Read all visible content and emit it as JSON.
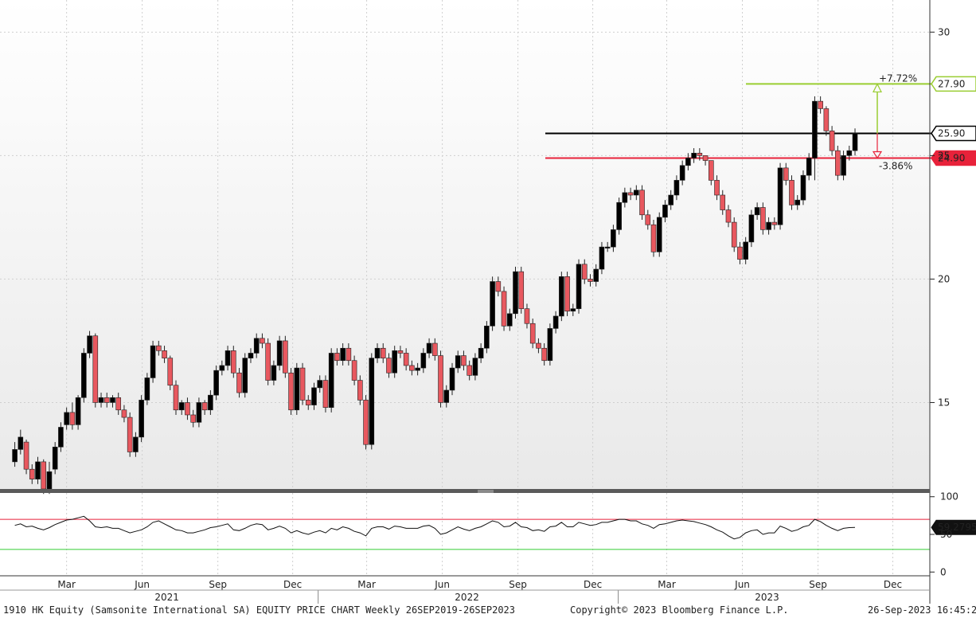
{
  "chart_data": {
    "type": "candlestick",
    "security": "1910 HK Equity",
    "ylim": [
      11.5,
      31.3
    ],
    "y_ticks": [
      15,
      20,
      25,
      30
    ],
    "x_month_labels": [
      {
        "label": "Mar",
        "date": "2021-03-01"
      },
      {
        "label": "Jun",
        "date": "2021-06-01"
      },
      {
        "label": "Sep",
        "date": "2021-09-01"
      },
      {
        "label": "Dec",
        "date": "2021-12-01"
      },
      {
        "label": "Mar",
        "date": "2022-03-01"
      },
      {
        "label": "Jun",
        "date": "2022-06-01"
      },
      {
        "label": "Sep",
        "date": "2022-09-01"
      },
      {
        "label": "Dec",
        "date": "2022-12-01"
      },
      {
        "label": "Mar",
        "date": "2023-03-01"
      },
      {
        "label": "Jun",
        "date": "2023-06-01"
      },
      {
        "label": "Sep",
        "date": "2023-09-01"
      },
      {
        "label": "Dec",
        "date": "2023-12-01"
      }
    ],
    "x_year_labels": [
      {
        "label": "2021",
        "date": "2021-07-01"
      },
      {
        "label": "2022",
        "date": "2022-07-01"
      },
      {
        "label": "2023",
        "date": "2023-07-01"
      }
    ],
    "year_dividers": [
      "2022-01-01",
      "2023-01-01"
    ],
    "candles_start_date": "2020-12-28",
    "weekly_close": [
      13.1,
      13.6,
      12.3,
      11.9,
      12.6,
      11.5,
      12.2,
      13.2,
      14.0,
      14.6,
      14.1,
      15.2,
      17.0,
      17.7,
      15.0,
      15.2,
      15.0,
      15.2,
      14.7,
      14.4,
      13.0,
      13.6,
      15.1,
      16.0,
      17.3,
      17.1,
      16.8,
      15.7,
      14.7,
      15.0,
      14.5,
      14.2,
      15.0,
      14.7,
      15.3,
      16.3,
      16.5,
      17.1,
      16.2,
      15.4,
      16.8,
      17.0,
      17.6,
      17.4,
      15.9,
      16.5,
      17.5,
      16.2,
      14.7,
      16.4,
      15.1,
      14.9,
      15.6,
      15.9,
      14.8,
      17.0,
      16.7,
      17.2,
      16.7,
      15.9,
      15.1,
      13.3,
      16.8,
      17.2,
      16.8,
      16.2,
      17.1,
      17.0,
      16.5,
      16.3,
      16.4,
      17.0,
      17.4,
      16.9,
      15.0,
      15.5,
      16.4,
      16.9,
      16.5,
      16.1,
      16.8,
      17.2,
      18.1,
      19.9,
      19.5,
      18.1,
      18.6,
      20.3,
      18.8,
      18.2,
      17.4,
      17.2,
      16.7,
      18.0,
      18.5,
      20.1,
      18.7,
      18.8,
      20.6,
      20.0,
      19.9,
      20.4,
      21.3,
      21.3,
      22.0,
      23.1,
      23.5,
      23.4,
      23.6,
      22.6,
      22.2,
      21.1,
      22.5,
      23.0,
      23.4,
      24.0,
      24.6,
      24.9,
      25.1,
      25.0,
      24.8,
      24.0,
      23.4,
      22.8,
      22.3,
      21.3,
      20.8,
      21.5,
      22.6,
      22.9,
      22.0,
      22.3,
      22.2,
      24.5,
      24.0,
      23.0,
      23.2,
      24.2,
      24.9,
      27.2,
      26.9,
      26.0,
      25.2,
      24.2,
      25.0,
      25.2,
      25.9
    ],
    "weekly_open": [
      12.6,
      13.1,
      13.4,
      12.3,
      11.9,
      12.6,
      11.5,
      12.3,
      13.2,
      14.1,
      14.6,
      14.1,
      15.2,
      17.0,
      17.7,
      15.0,
      15.2,
      15.0,
      15.2,
      14.7,
      14.4,
      13.0,
      13.6,
      15.1,
      16.0,
      17.3,
      17.1,
      16.8,
      15.7,
      14.7,
      15.0,
      14.5,
      14.2,
      15.0,
      14.7,
      15.3,
      16.3,
      16.5,
      17.1,
      16.2,
      15.4,
      16.8,
      17.0,
      17.6,
      17.4,
      15.9,
      16.5,
      17.5,
      16.2,
      14.7,
      16.4,
      15.1,
      14.9,
      15.6,
      15.9,
      14.8,
      17.0,
      16.7,
      17.2,
      16.7,
      15.9,
      15.1,
      13.3,
      16.8,
      17.2,
      16.8,
      16.2,
      17.1,
      17.0,
      16.5,
      16.3,
      16.4,
      17.0,
      17.4,
      16.9,
      15.0,
      15.5,
      16.4,
      16.9,
      16.5,
      16.1,
      16.8,
      17.2,
      18.1,
      19.9,
      19.5,
      18.1,
      18.6,
      20.3,
      18.8,
      18.2,
      17.4,
      17.2,
      16.7,
      18.0,
      18.5,
      20.1,
      18.7,
      18.8,
      20.6,
      20.0,
      19.9,
      20.4,
      21.3,
      21.3,
      22.0,
      23.1,
      23.5,
      23.4,
      23.6,
      22.6,
      22.2,
      21.1,
      22.5,
      23.0,
      23.4,
      24.0,
      24.6,
      24.9,
      25.1,
      25.0,
      24.8,
      24.0,
      23.4,
      22.8,
      22.3,
      21.3,
      20.8,
      21.5,
      22.6,
      22.9,
      22.0,
      22.3,
      22.2,
      24.5,
      24.0,
      23.0,
      23.2,
      24.2,
      24.9,
      27.2,
      26.9,
      26.0,
      25.2,
      24.2,
      25.0,
      25.2
    ],
    "weekly_high": [
      13.4,
      13.9,
      13.5,
      12.5,
      12.8,
      12.7,
      12.6,
      13.4,
      14.2,
      14.8,
      15.0,
      15.3,
      17.2,
      17.9,
      17.8,
      15.4,
      15.4,
      15.3,
      15.4,
      14.9,
      14.6,
      13.8,
      15.3,
      16.2,
      17.5,
      17.5,
      17.3,
      16.9,
      15.9,
      15.1,
      15.2,
      14.7,
      15.2,
      15.1,
      15.5,
      16.5,
      16.7,
      17.3,
      17.3,
      16.4,
      17.0,
      17.2,
      17.8,
      17.8,
      17.6,
      16.7,
      17.7,
      17.7,
      16.4,
      16.6,
      16.6,
      15.3,
      15.8,
      16.1,
      16.1,
      17.2,
      17.2,
      17.4,
      17.4,
      16.9,
      16.1,
      15.3,
      17.0,
      17.4,
      17.4,
      17.0,
      17.3,
      17.3,
      17.2,
      16.7,
      16.6,
      17.2,
      17.6,
      17.6,
      17.1,
      15.7,
      16.6,
      17.1,
      17.1,
      16.7,
      17.0,
      17.4,
      18.3,
      20.1,
      20.1,
      19.7,
      18.8,
      20.5,
      20.5,
      19.0,
      18.4,
      17.6,
      17.4,
      18.2,
      18.7,
      20.3,
      20.3,
      19.0,
      20.8,
      20.8,
      20.2,
      20.6,
      21.5,
      21.5,
      22.2,
      23.3,
      23.7,
      23.7,
      23.8,
      23.8,
      22.8,
      22.4,
      22.7,
      23.2,
      23.6,
      24.2,
      24.8,
      25.1,
      25.3,
      25.3,
      25.0,
      24.8,
      24.2,
      23.6,
      23.0,
      22.5,
      21.5,
      21.7,
      22.8,
      23.1,
      23.1,
      22.5,
      22.5,
      24.7,
      24.7,
      24.2,
      23.4,
      24.4,
      25.1,
      27.4,
      27.4,
      27.0,
      26.2,
      25.4,
      25.2,
      25.4,
      26.1
    ],
    "weekly_low": [
      12.4,
      12.9,
      12.1,
      11.7,
      11.7,
      11.3,
      11.3,
      12.1,
      13.0,
      13.9,
      13.9,
      13.9,
      15.0,
      16.8,
      14.8,
      14.8,
      14.8,
      14.8,
      14.5,
      14.2,
      12.8,
      12.8,
      13.4,
      14.9,
      15.8,
      16.9,
      16.6,
      15.5,
      14.5,
      14.5,
      14.3,
      14.0,
      14.0,
      14.5,
      14.5,
      15.1,
      16.1,
      16.3,
      16.0,
      15.2,
      15.2,
      16.6,
      16.8,
      17.2,
      15.7,
      15.7,
      16.3,
      16.0,
      14.5,
      14.5,
      14.9,
      14.7,
      14.7,
      15.4,
      14.6,
      14.6,
      16.5,
      16.5,
      16.5,
      15.7,
      14.9,
      13.1,
      13.1,
      16.6,
      16.6,
      16.0,
      16.0,
      16.8,
      16.3,
      16.1,
      16.1,
      16.2,
      16.8,
      16.7,
      14.8,
      14.8,
      15.3,
      16.2,
      16.3,
      15.9,
      15.9,
      16.6,
      17.0,
      17.9,
      19.3,
      17.9,
      17.9,
      18.4,
      18.6,
      18.0,
      17.2,
      17.0,
      16.5,
      16.5,
      17.8,
      18.3,
      18.5,
      18.5,
      18.6,
      19.8,
      19.7,
      19.7,
      20.2,
      21.1,
      21.1,
      21.8,
      22.9,
      23.2,
      23.2,
      22.4,
      22.0,
      20.9,
      20.9,
      22.3,
      22.8,
      23.2,
      23.8,
      24.4,
      24.7,
      24.8,
      24.6,
      23.8,
      23.2,
      22.6,
      22.1,
      21.1,
      20.6,
      20.6,
      21.3,
      22.4,
      21.8,
      21.8,
      22.0,
      22.0,
      23.8,
      22.8,
      22.8,
      23.0,
      24.0,
      24.0,
      26.7,
      25.8,
      25.0,
      24.0,
      24.0,
      24.8,
      25.0
    ],
    "reference_lines": [
      {
        "label": "27.90",
        "value": 27.9,
        "color": "#9acd32"
      },
      {
        "label": "25.90",
        "value": 25.9,
        "color": "#000000"
      },
      {
        "label": "24.90",
        "value": 24.9,
        "color": "#e8223a"
      }
    ],
    "annotations": [
      {
        "label": "+7.72%",
        "color": "#9acd32"
      },
      {
        "label": "-3.86%",
        "color": "#e8223a"
      }
    ],
    "rsi": {
      "current_label": "59.2795",
      "ylim": [
        -5,
        105
      ],
      "ticks": [
        100,
        50,
        0
      ],
      "overbought": 70,
      "oversold": 30,
      "series": [
        62,
        64,
        60,
        61,
        58,
        56,
        59,
        63,
        66,
        69,
        70,
        72,
        74,
        68,
        60,
        59,
        60,
        58,
        58,
        55,
        52,
        54,
        56,
        60,
        66,
        68,
        64,
        60,
        56,
        55,
        52,
        52,
        54,
        56,
        59,
        60,
        62,
        64,
        56,
        55,
        58,
        62,
        64,
        63,
        56,
        58,
        61,
        58,
        52,
        55,
        52,
        50,
        53,
        55,
        52,
        58,
        56,
        60,
        58,
        54,
        52,
        48,
        58,
        60,
        60,
        57,
        61,
        60,
        58,
        58,
        58,
        61,
        62,
        58,
        50,
        52,
        56,
        60,
        57,
        55,
        58,
        60,
        64,
        68,
        66,
        60,
        61,
        66,
        60,
        59,
        55,
        56,
        54,
        60,
        61,
        66,
        60,
        60,
        66,
        64,
        62,
        63,
        66,
        66,
        68,
        70,
        70,
        68,
        68,
        64,
        62,
        58,
        63,
        64,
        66,
        68,
        69,
        68,
        67,
        65,
        63,
        60,
        56,
        53,
        48,
        44,
        46,
        52,
        55,
        56,
        50,
        52,
        52,
        61,
        58,
        54,
        56,
        60,
        62,
        70,
        67,
        62,
        58,
        55,
        58,
        59,
        59.28
      ]
    },
    "x_start_date": "2020-12-10",
    "x_end_date": "2024-01-15"
  },
  "footer": {
    "title": "1910 HK Equity (Samsonite International SA) EQUITY PRICE CHART  Weekly 26SEP2019-26SEP2023",
    "copyright": "Copyright© 2023 Bloomberg Finance L.P.",
    "timestamp": "26-Sep-2023 16:45:21"
  }
}
